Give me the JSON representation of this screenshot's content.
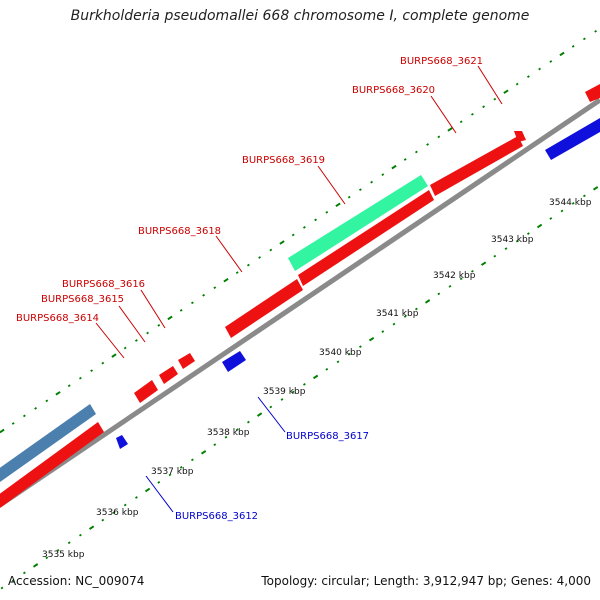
{
  "title": "Burkholderia pseudomallei 668 chromosome I, complete genome",
  "footer": {
    "accession": "Accession: NC_009074",
    "info": "Topology: circular; Length: 3,912,947 bp; Genes: 4,000"
  },
  "colors": {
    "backbone": "#8c8c8c",
    "forward_cds": "#ff0000",
    "reverse_cds": "#0000ff",
    "highlight_teal": "#33ff99",
    "steelblue": "#4682b4",
    "tick": "#008000",
    "forward_label": "#cc0000",
    "reverse_label": "#0000cc"
  },
  "scale_labels": [
    "3535 kbp",
    "3536 kbp",
    "3537 kbp",
    "3538 kbp",
    "3539 kbp",
    "3540 kbp",
    "3541 kbp",
    "3542 kbp",
    "3543 kbp",
    "3544 kbp"
  ],
  "gene_labels": [
    {
      "text": "BURPS668_3621",
      "strand": "forward"
    },
    {
      "text": "BURPS668_3620",
      "strand": "forward"
    },
    {
      "text": "BURPS668_3619",
      "strand": "forward"
    },
    {
      "text": "BURPS668_3618",
      "strand": "forward"
    },
    {
      "text": "BURPS668_3616",
      "strand": "forward"
    },
    {
      "text": "BURPS668_3615",
      "strand": "forward"
    },
    {
      "text": "BURPS668_3614",
      "strand": "forward"
    },
    {
      "text": "BURPS668_3617",
      "strand": "reverse"
    },
    {
      "text": "BURPS668_3612",
      "strand": "reverse"
    }
  ]
}
